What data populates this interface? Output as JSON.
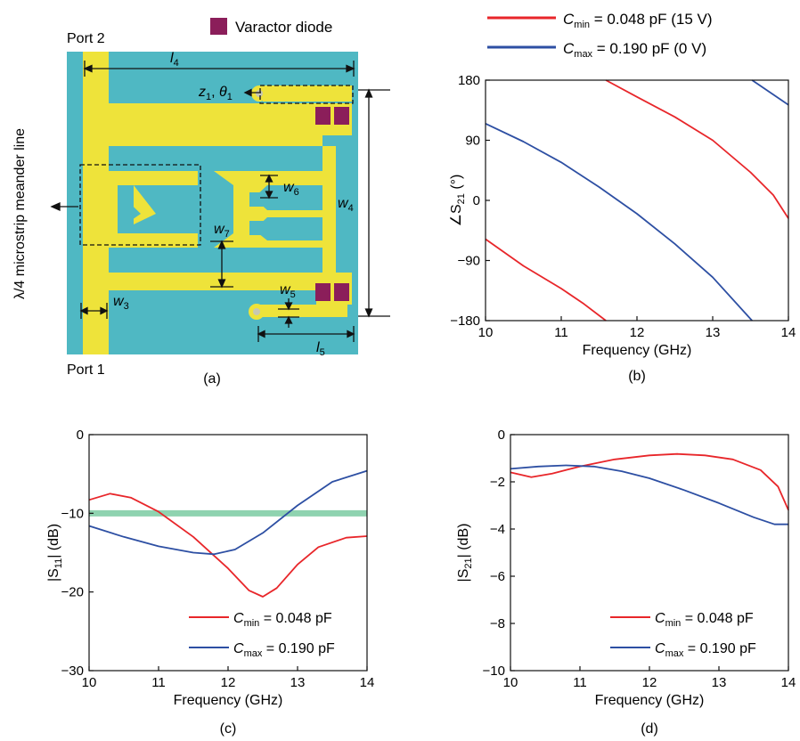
{
  "colors": {
    "substrate": "#4fb8c3",
    "metal": "#eee33a",
    "varactor": "#8b1e5a",
    "cmin": "#e8262a",
    "cmax": "#2d4fa3",
    "threshold": "#8fd3b0"
  },
  "panel_a": {
    "label": "(a)",
    "port2": "Port 2",
    "port1": "Port 1",
    "varactor_legend": "Varactor diode",
    "meander_label": "λ/4 microstrip meander line",
    "dims": {
      "l4": "l",
      "l4_sub": "4",
      "l5": "l",
      "l5_sub": "5",
      "w3": "w",
      "w3_sub": "3",
      "w4": "w",
      "w4_sub": "4",
      "w5": "w",
      "w5_sub": "5",
      "w6": "w",
      "w6_sub": "6",
      "w7": "w",
      "w7_sub": "7",
      "z1": "z",
      "z1_sub": "1",
      "comma": ", ",
      "theta1": "θ",
      "theta1_sub": "1"
    }
  },
  "legend_top": {
    "cmin": {
      "sym": "C",
      "sub": "min",
      "text": " = 0.048 pF (15 V)"
    },
    "cmax": {
      "sym": "C",
      "sub": "max",
      "text": " = 0.190 pF (0 V)"
    }
  },
  "chart_data": [
    {
      "panel": "(b)",
      "type": "line",
      "xlabel": "Frequency (GHz)",
      "ylabel": {
        "prefix": "∠S",
        "sub": "21",
        "suffix": " (°)"
      },
      "xlim": [
        10,
        14
      ],
      "ylim": [
        -180,
        180
      ],
      "xticks": [
        10,
        11,
        12,
        13,
        14
      ],
      "yticks": [
        -180,
        -90,
        0,
        90,
        180
      ],
      "series": [
        {
          "name": "C_min = 0.048 pF (15 V)",
          "color": "#e8262a",
          "segments": [
            [
              [
                10,
                -58
              ],
              [
                10.5,
                -98
              ],
              [
                11,
                -132
              ],
              [
                11.3,
                -155
              ],
              [
                11.59,
                -180
              ]
            ],
            [
              [
                11.59,
                180
              ],
              [
                12,
                155
              ],
              [
                12.5,
                125
              ],
              [
                13,
                90
              ],
              [
                13.5,
                42
              ],
              [
                13.8,
                8
              ],
              [
                14,
                -27
              ]
            ]
          ]
        },
        {
          "name": "C_max = 0.190 pF (0 V)",
          "color": "#2d4fa3",
          "segments": [
            [
              [
                10,
                115
              ],
              [
                10.5,
                88
              ],
              [
                11,
                57
              ],
              [
                11.5,
                20
              ],
              [
                12,
                -20
              ],
              [
                12.5,
                -65
              ],
              [
                13,
                -115
              ],
              [
                13.52,
                -180
              ]
            ],
            [
              [
                13.52,
                180
              ],
              [
                14,
                143
              ]
            ]
          ]
        }
      ]
    },
    {
      "panel": "(c)",
      "type": "line",
      "xlabel": "Frequency (GHz)",
      "ylabel": {
        "prefix": "|S",
        "sub": "11",
        "suffix": "| (dB)"
      },
      "xlim": [
        10,
        14
      ],
      "ylim": [
        -30,
        0
      ],
      "xticks": [
        10,
        11,
        12,
        13,
        14
      ],
      "yticks": [
        -30,
        -20,
        -10,
        0
      ],
      "threshold": -10,
      "legend": [
        {
          "sym": "C",
          "sub": "min",
          "text": " = 0.048 pF",
          "color": "#e8262a"
        },
        {
          "sym": "C",
          "sub": "max",
          "text": " = 0.190 pF",
          "color": "#2d4fa3"
        }
      ],
      "series": [
        {
          "name": "C_min = 0.048 pF",
          "color": "#e8262a",
          "points": [
            [
              10,
              -8.3
            ],
            [
              10.3,
              -7.5
            ],
            [
              10.6,
              -8
            ],
            [
              11,
              -9.8
            ],
            [
              11.5,
              -13
            ],
            [
              12,
              -17
            ],
            [
              12.3,
              -19.8
            ],
            [
              12.5,
              -20.6
            ],
            [
              12.7,
              -19.5
            ],
            [
              13,
              -16.5
            ],
            [
              13.3,
              -14.3
            ],
            [
              13.7,
              -13.1
            ],
            [
              14,
              -12.9
            ]
          ]
        },
        {
          "name": "C_max = 0.190 pF",
          "color": "#2d4fa3",
          "points": [
            [
              10,
              -11.6
            ],
            [
              10.5,
              -13
            ],
            [
              11,
              -14.2
            ],
            [
              11.5,
              -15
            ],
            [
              11.8,
              -15.2
            ],
            [
              12.1,
              -14.6
            ],
            [
              12.5,
              -12.5
            ],
            [
              13,
              -9
            ],
            [
              13.5,
              -6
            ],
            [
              14,
              -4.6
            ]
          ]
        }
      ]
    },
    {
      "panel": "(d)",
      "type": "line",
      "xlabel": "Frequency (GHz)",
      "ylabel": {
        "prefix": "|S",
        "sub": "21",
        "suffix": "| (dB)"
      },
      "xlim": [
        10,
        14
      ],
      "ylim": [
        -10,
        0
      ],
      "xticks": [
        10,
        11,
        12,
        13,
        14
      ],
      "yticks": [
        -10,
        -8,
        -6,
        -4,
        -2,
        0
      ],
      "legend": [
        {
          "sym": "C",
          "sub": "min",
          "text": " = 0.048 pF",
          "color": "#e8262a"
        },
        {
          "sym": "C",
          "sub": "max",
          "text": " = 0.190 pF",
          "color": "#2d4fa3"
        }
      ],
      "series": [
        {
          "name": "C_min = 0.048 pF",
          "color": "#e8262a",
          "points": [
            [
              10,
              -1.6
            ],
            [
              10.3,
              -1.8
            ],
            [
              10.6,
              -1.65
            ],
            [
              11,
              -1.35
            ],
            [
              11.5,
              -1.05
            ],
            [
              12,
              -0.88
            ],
            [
              12.4,
              -0.82
            ],
            [
              12.8,
              -0.88
            ],
            [
              13.2,
              -1.05
            ],
            [
              13.6,
              -1.5
            ],
            [
              13.85,
              -2.2
            ],
            [
              14,
              -3.2
            ]
          ]
        },
        {
          "name": "C_max = 0.190 pF",
          "color": "#2d4fa3",
          "points": [
            [
              10,
              -1.45
            ],
            [
              10.4,
              -1.35
            ],
            [
              10.8,
              -1.3
            ],
            [
              11.2,
              -1.35
            ],
            [
              11.6,
              -1.55
            ],
            [
              12,
              -1.85
            ],
            [
              12.5,
              -2.35
            ],
            [
              13,
              -2.9
            ],
            [
              13.5,
              -3.5
            ],
            [
              13.8,
              -3.8
            ],
            [
              14,
              -3.8
            ]
          ]
        }
      ]
    }
  ]
}
